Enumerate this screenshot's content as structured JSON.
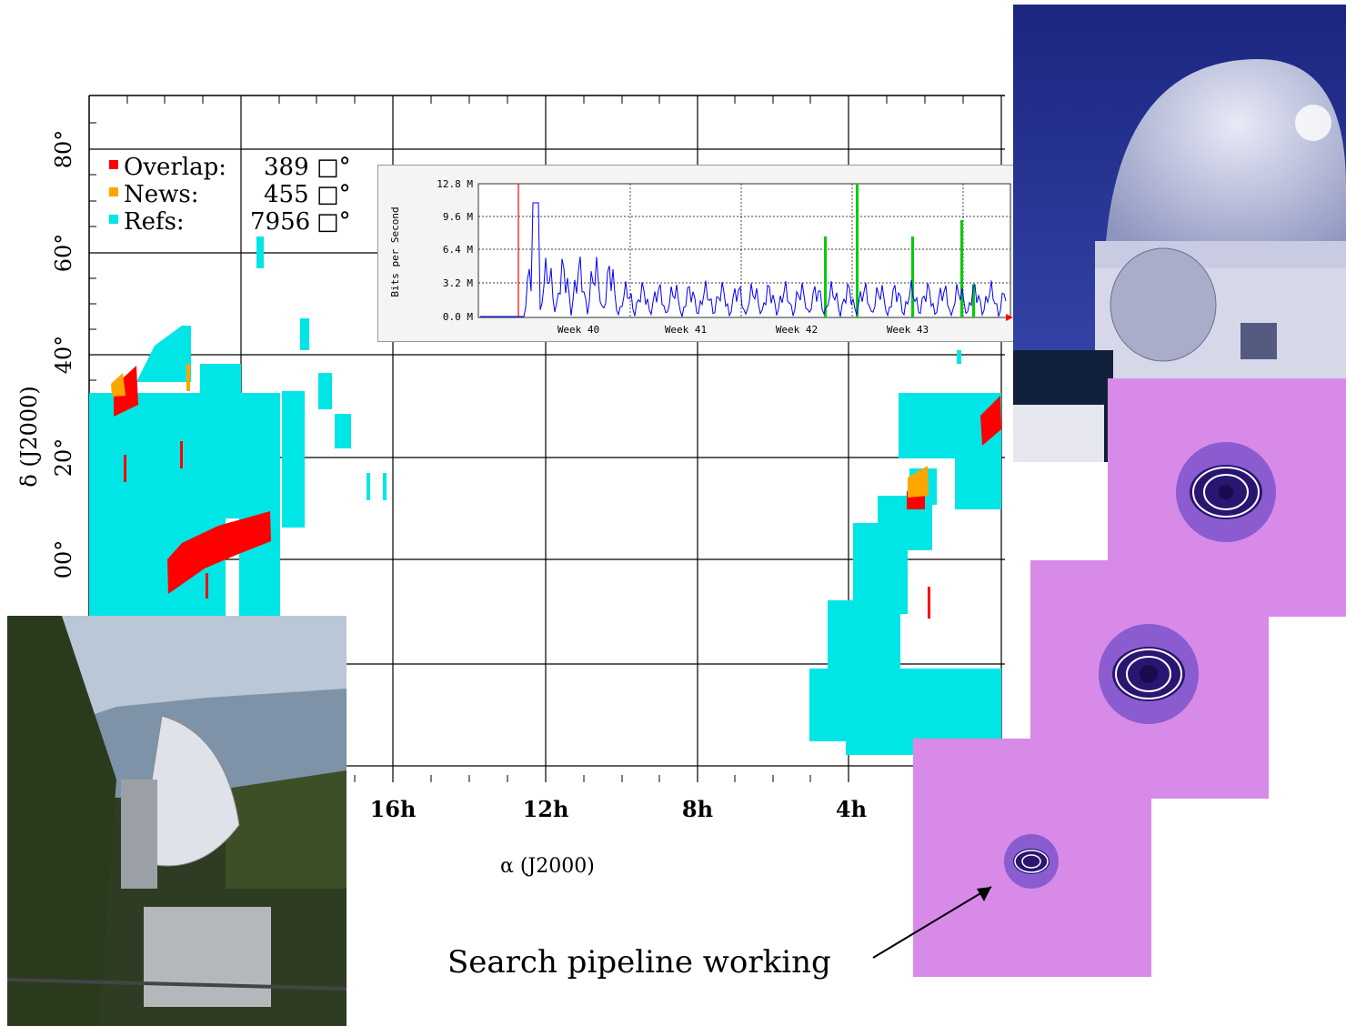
{
  "sky_map": {
    "legend": [
      {
        "label": "Overlap:",
        "value": "389",
        "unit": "□°",
        "color": "#ff0000"
      },
      {
        "label": "News:",
        "value": "455",
        "unit": "□°",
        "color": "#ffa500"
      },
      {
        "label": "Refs:",
        "value": "7956",
        "unit": "□°",
        "color": "#00e5e5"
      }
    ],
    "dec_ticks": [
      "80°",
      "60°",
      "40°",
      "20°",
      "00°"
    ],
    "ra_ticks": [
      "16h",
      "12h",
      "8h",
      "4h"
    ],
    "ylabel": "δ (J2000)",
    "xlabel": "α (J2000)",
    "colors": {
      "refs": "#00e5e5",
      "overlap": "#ff0000",
      "news": "#ffa500"
    }
  },
  "traffic_chart": {
    "ylabel": "Bits per Second",
    "yticks": [
      "12.8 M",
      "9.6 M",
      "6.4 M",
      "3.2 M",
      "0.0 M"
    ],
    "xticks": [
      "Week 40",
      "Week 41",
      "Week 42",
      "Week 43"
    ],
    "colors": {
      "line": "#0000ff",
      "burst": "#00cc00",
      "marker": "#ff0000"
    }
  },
  "caption": "Search pipeline working"
}
